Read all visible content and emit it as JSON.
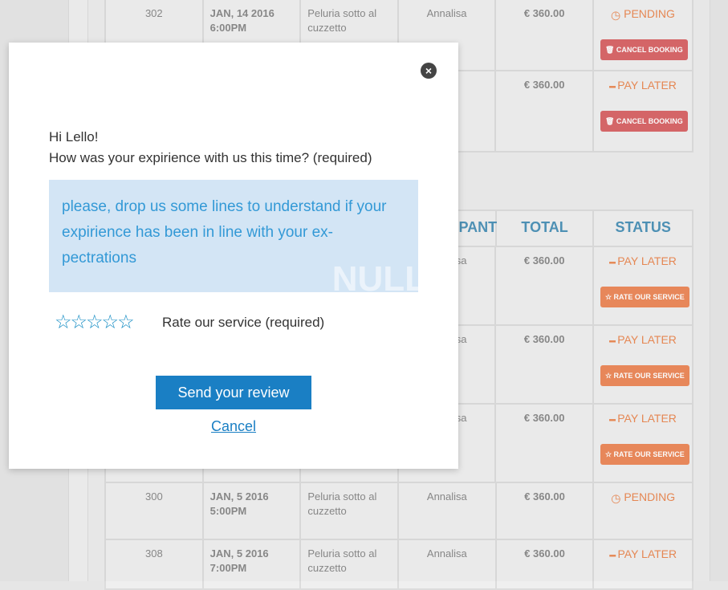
{
  "table_top": {
    "rows": [
      {
        "id": "302",
        "date": "JAN, 14 2016",
        "time": "6:00PM",
        "service": "Peluria sotto al cuzzetto",
        "participant": "Annalisa",
        "total": "€ 360.00",
        "status_icon": "clock-icon",
        "status": "PENDING",
        "action_icon": "trash-icon",
        "action": "CANCEL BOOKING"
      },
      {
        "id": "",
        "date": "",
        "time": "",
        "service": "",
        "participant": "",
        "total": "€ 360.00",
        "status_icon": "dash-icon",
        "status": "PAY LATER",
        "action_icon": "trash-icon",
        "action": "CANCEL BOOKING"
      }
    ]
  },
  "table_bottom": {
    "headers": [
      "",
      "",
      "",
      "PARTICIPANT",
      "TOTAL",
      "STATUS"
    ],
    "rows": [
      {
        "id": "",
        "date": "",
        "time": "",
        "service": "",
        "participant": "Annalisa",
        "total": "€ 360.00",
        "status": "PAY LATER",
        "action": "RATE OUR SERVICE"
      },
      {
        "id": "",
        "date": "",
        "time": "",
        "service": "",
        "participant": "Annalisa",
        "total": "€ 360.00",
        "status": "PAY LATER",
        "action": "RATE OUR SERVICE"
      },
      {
        "id": "",
        "date": "",
        "time": "",
        "service": "",
        "participant": "Annalisa",
        "total": "€ 360.00",
        "status": "PAY LATER",
        "action": "RATE OUR SERVICE"
      },
      {
        "id": "300",
        "date": "JAN, 5 2016",
        "time": "5:00PM",
        "service": "Peluria sotto al cuzzetto",
        "participant": "Annalisa",
        "total": "€ 360.00",
        "status": "PENDING",
        "action": ""
      },
      {
        "id": "308",
        "date": "JAN, 5 2016",
        "time": "7:00PM",
        "service": "Peluria sotto al cuzzetto",
        "participant": "Annalisa",
        "total": "€ 360.00",
        "status": "PAY LATER",
        "action": ""
      }
    ]
  },
  "modal": {
    "greeting": "Hi Lello!",
    "question": "How was your expirience with us this time? (required)",
    "textarea_placeholder": "please, drop us some lines to understand if your expirience has been  in line  with your ex-pectrations",
    "watermark": "NULL",
    "rating_value": 0,
    "rating_max": 5,
    "rate_label": "Rate our service (required)",
    "send_label": "Send your review",
    "cancel_label": "Cancel"
  },
  "colors": {
    "accent": "#1a7fc4",
    "status": "#ea8a55",
    "cancel": "#d9686a",
    "rate": "#ec8a5c",
    "header": "#4f93b8"
  }
}
